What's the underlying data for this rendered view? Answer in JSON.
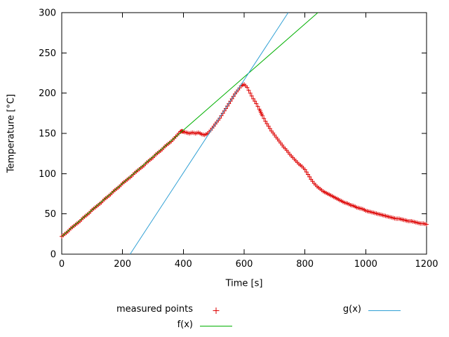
{
  "page": {
    "background": "#ffffff"
  },
  "chart_data": {
    "type": "scatter",
    "title": "",
    "xlabel": "Time [s]",
    "ylabel": "Temperature [°C]",
    "xlim": [
      0,
      1200
    ],
    "ylim": [
      0,
      300
    ],
    "xticks": [
      0,
      200,
      400,
      600,
      800,
      1000,
      1200
    ],
    "yticks": [
      0,
      50,
      100,
      150,
      200,
      250,
      300
    ],
    "grid": false,
    "legend_position": "below-plot",
    "axis_color": "#000000",
    "series": [
      {
        "name": "measured points",
        "type": "points",
        "marker": "plus",
        "color": "#dd0000",
        "points": [
          [
            0,
            22
          ],
          [
            10,
            25
          ],
          [
            20,
            28
          ],
          [
            30,
            32
          ],
          [
            40,
            35
          ],
          [
            50,
            38
          ],
          [
            60,
            41
          ],
          [
            70,
            45
          ],
          [
            80,
            48
          ],
          [
            90,
            51
          ],
          [
            100,
            55
          ],
          [
            110,
            58
          ],
          [
            120,
            61
          ],
          [
            130,
            64
          ],
          [
            140,
            68
          ],
          [
            150,
            71
          ],
          [
            160,
            74
          ],
          [
            170,
            78
          ],
          [
            180,
            81
          ],
          [
            190,
            84
          ],
          [
            200,
            88
          ],
          [
            210,
            91
          ],
          [
            220,
            94
          ],
          [
            230,
            97
          ],
          [
            240,
            101
          ],
          [
            250,
            104
          ],
          [
            260,
            107
          ],
          [
            270,
            110
          ],
          [
            280,
            114
          ],
          [
            290,
            117
          ],
          [
            300,
            120
          ],
          [
            310,
            124
          ],
          [
            320,
            127
          ],
          [
            330,
            130
          ],
          [
            340,
            134
          ],
          [
            350,
            137
          ],
          [
            360,
            140
          ],
          [
            370,
            144
          ],
          [
            380,
            148
          ],
          [
            390,
            152
          ],
          [
            395,
            153
          ],
          [
            400,
            152
          ],
          [
            410,
            151
          ],
          [
            420,
            150
          ],
          [
            430,
            151
          ],
          [
            440,
            150
          ],
          [
            450,
            151
          ],
          [
            460,
            149
          ],
          [
            470,
            148
          ],
          [
            480,
            150
          ],
          [
            490,
            154
          ],
          [
            500,
            159
          ],
          [
            510,
            164
          ],
          [
            520,
            169
          ],
          [
            530,
            175
          ],
          [
            540,
            181
          ],
          [
            550,
            187
          ],
          [
            560,
            193
          ],
          [
            570,
            199
          ],
          [
            580,
            204
          ],
          [
            590,
            209
          ],
          [
            600,
            211
          ],
          [
            610,
            207
          ],
          [
            620,
            200
          ],
          [
            630,
            193
          ],
          [
            640,
            187
          ],
          [
            650,
            180
          ],
          [
            655,
            176
          ],
          [
            660,
            172
          ],
          [
            670,
            165
          ],
          [
            680,
            159
          ],
          [
            690,
            153
          ],
          [
            700,
            148
          ],
          [
            710,
            143
          ],
          [
            720,
            138
          ],
          [
            730,
            133
          ],
          [
            740,
            129
          ],
          [
            750,
            124
          ],
          [
            760,
            120
          ],
          [
            770,
            116
          ],
          [
            780,
            112
          ],
          [
            790,
            109
          ],
          [
            800,
            105
          ],
          [
            810,
            99
          ],
          [
            820,
            93
          ],
          [
            830,
            88
          ],
          [
            840,
            84
          ],
          [
            850,
            81
          ],
          [
            860,
            78
          ],
          [
            870,
            76
          ],
          [
            880,
            74
          ],
          [
            890,
            72
          ],
          [
            900,
            70
          ],
          [
            910,
            68
          ],
          [
            920,
            66
          ],
          [
            930,
            64
          ],
          [
            940,
            63
          ],
          [
            950,
            61
          ],
          [
            960,
            60
          ],
          [
            970,
            58
          ],
          [
            980,
            57
          ],
          [
            990,
            56
          ],
          [
            1000,
            54
          ],
          [
            1010,
            53
          ],
          [
            1020,
            52
          ],
          [
            1030,
            51
          ],
          [
            1040,
            50
          ],
          [
            1050,
            49
          ],
          [
            1060,
            48
          ],
          [
            1070,
            47
          ],
          [
            1080,
            46
          ],
          [
            1090,
            45
          ],
          [
            1100,
            44
          ],
          [
            1110,
            44
          ],
          [
            1120,
            43
          ],
          [
            1130,
            42
          ],
          [
            1140,
            41
          ],
          [
            1150,
            41
          ],
          [
            1160,
            40
          ],
          [
            1170,
            39
          ],
          [
            1180,
            38
          ],
          [
            1190,
            38
          ],
          [
            1200,
            37
          ]
        ]
      },
      {
        "name": "f(x)",
        "type": "line",
        "color": "#00b000",
        "line": {
          "slope": 0.33,
          "intercept": 22
        }
      },
      {
        "name": "g(x)",
        "type": "line",
        "color": "#2e9fd4",
        "line": {
          "slope": 0.577,
          "intercept": -129.8
        }
      }
    ]
  }
}
